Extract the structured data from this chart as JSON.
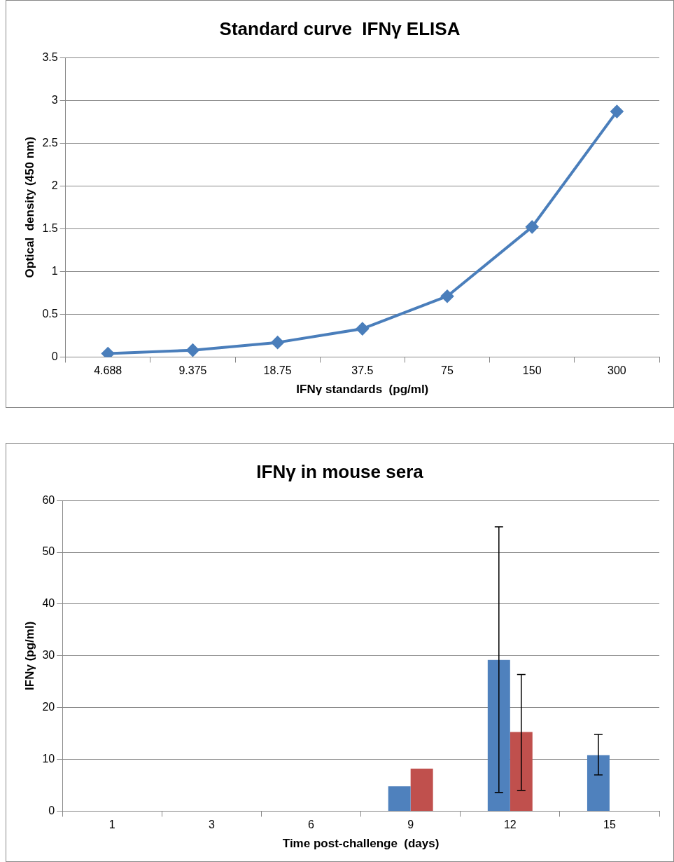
{
  "chart_data": [
    {
      "type": "line",
      "title": "Standard curve  IFNγ ELISA",
      "xlabel": "IFNγ standards  (pg/ml)",
      "ylabel": "Optical  density (450 nm)",
      "categories": [
        "4.688",
        "9.375",
        "18.75",
        "37.5",
        "75",
        "150",
        "300"
      ],
      "series": [
        {
          "color": "#4a7ebb",
          "values": [
            0.04,
            0.08,
            0.17,
            0.33,
            0.71,
            1.52,
            2.87
          ]
        }
      ],
      "ylim": [
        0,
        3.5
      ],
      "yticks": [
        0,
        0.5,
        1,
        1.5,
        2,
        2.5,
        3,
        3.5
      ],
      "grid": "y",
      "marker": "diamond",
      "legend": false
    },
    {
      "type": "bar",
      "title": "IFNγ in mouse sera",
      "xlabel": "Time post-challenge  (days)",
      "ylabel": "IFNγ (pg/ml)",
      "categories": [
        "1",
        "3",
        "6",
        "9",
        "12",
        "15"
      ],
      "series": [
        {
          "color": "#4f81bd",
          "values": [
            null,
            null,
            null,
            4.8,
            29.2,
            10.8
          ],
          "errors": [
            null,
            null,
            null,
            null,
            [
              3.6,
              54.9
            ],
            [
              7.0,
              14.8
            ]
          ]
        },
        {
          "color": "#c0504d",
          "values": [
            null,
            null,
            null,
            8.2,
            15.3,
            null
          ],
          "errors": [
            null,
            null,
            null,
            null,
            [
              4.0,
              26.4
            ],
            null
          ]
        }
      ],
      "ylim": [
        0,
        60
      ],
      "yticks": [
        0,
        10,
        20,
        30,
        40,
        50,
        60
      ],
      "grid": "y",
      "legend": false
    }
  ]
}
